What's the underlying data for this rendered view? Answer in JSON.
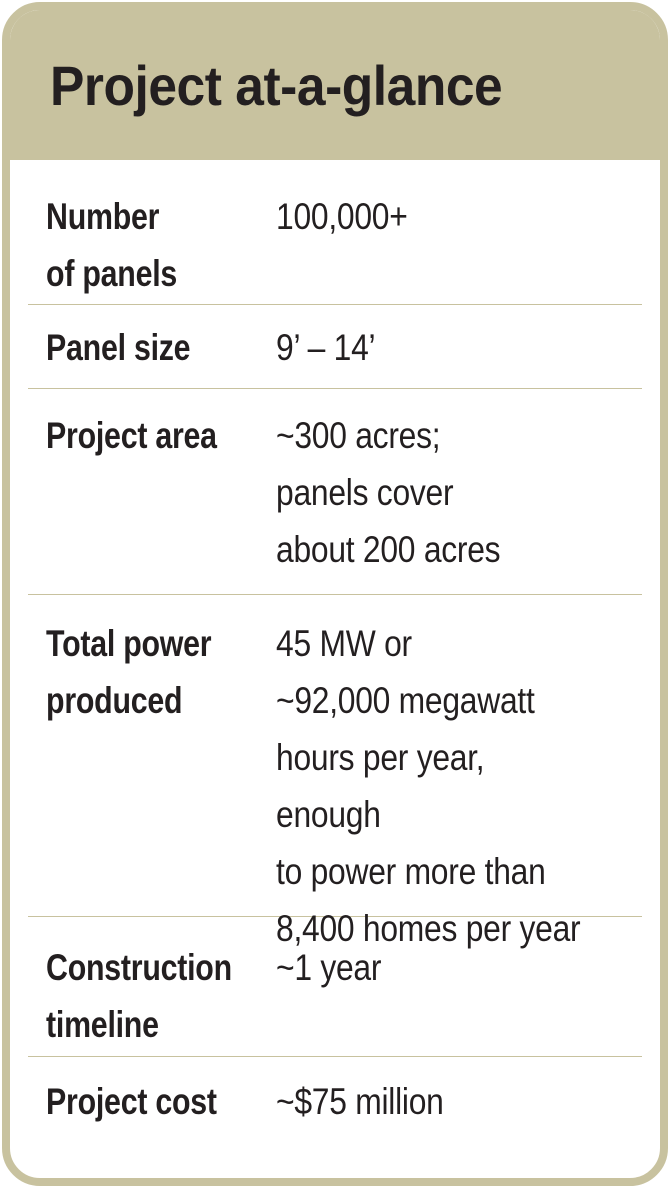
{
  "title": "Project at-a-glance",
  "colors": {
    "accent": "#c8c29f",
    "text": "#231f20",
    "background": "#ffffff"
  },
  "rows": [
    {
      "label": "Number\nof panels",
      "value": "100,000+"
    },
    {
      "label": "Panel size",
      "value": "9’ – 14’"
    },
    {
      "label": "Project area",
      "value": "~300 acres;\npanels cover\nabout 200 acres"
    },
    {
      "label": "Total power\nproduced",
      "value": "45 MW or\n~92,000 megawatt\nhours per year, enough\nto power more than\n8,400 homes per year"
    },
    {
      "label": "Construction\ntimeline",
      "value": "~1 year"
    },
    {
      "label": "Project cost",
      "value": "~$75 million"
    }
  ]
}
